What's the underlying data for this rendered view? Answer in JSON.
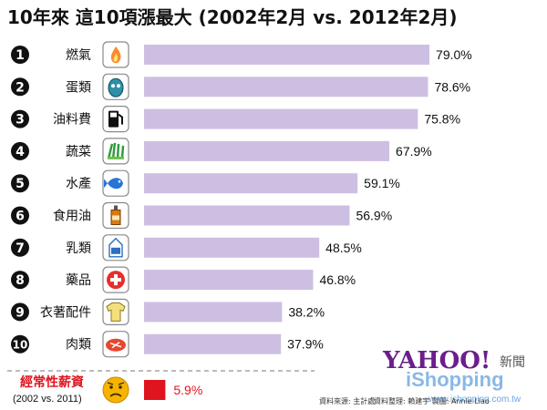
{
  "title": "10年來 這10項漲最大 (2002年2月 vs. 2012年2月)",
  "colors": {
    "bar": "#cdbfe2",
    "wage_bar": "#e0141e",
    "badge": "#111111"
  },
  "chart_data": {
    "type": "bar",
    "orientation": "horizontal",
    "title": "10年來 這10項漲最大 (2002年2月 vs. 2012年2月)",
    "categories": [
      "燃氣",
      "蛋類",
      "油料費",
      "蔬菜",
      "水產",
      "食用油",
      "乳類",
      "藥品",
      "衣著配件",
      "肉類"
    ],
    "ranks": [
      "1",
      "2",
      "3",
      "4",
      "5",
      "6",
      "7",
      "8",
      "9",
      "10"
    ],
    "values": [
      79.0,
      78.6,
      75.8,
      67.9,
      59.1,
      56.9,
      48.5,
      46.8,
      38.2,
      37.9
    ],
    "value_labels": [
      "79.0%",
      "78.6%",
      "75.8%",
      "67.9%",
      "59.1%",
      "56.9%",
      "48.5%",
      "46.8%",
      "38.2%",
      "37.9%"
    ],
    "icons": [
      "flame-icon",
      "egg-icon",
      "fuel-pump-icon",
      "vegetable-icon",
      "fish-icon",
      "oil-bottle-icon",
      "milk-carton-icon",
      "medicine-icon",
      "shirt-icon",
      "meat-icon"
    ],
    "xlim": [
      0,
      80
    ],
    "comparison": {
      "label": "經常性薪資",
      "sublabel": "(2002 vs. 2011)",
      "value": 5.9,
      "value_label": "5.9%",
      "icon": "worried-face-icon"
    }
  },
  "footer": {
    "source": "資料來源: 主計處",
    "credits": "資料整理: 賴建宇  製圖: Annie Liao",
    "brand": "YAHOO!",
    "brand_news": "新聞",
    "brand_2": "iShopping",
    "brand_url": "www.ishopping.com.tw"
  }
}
